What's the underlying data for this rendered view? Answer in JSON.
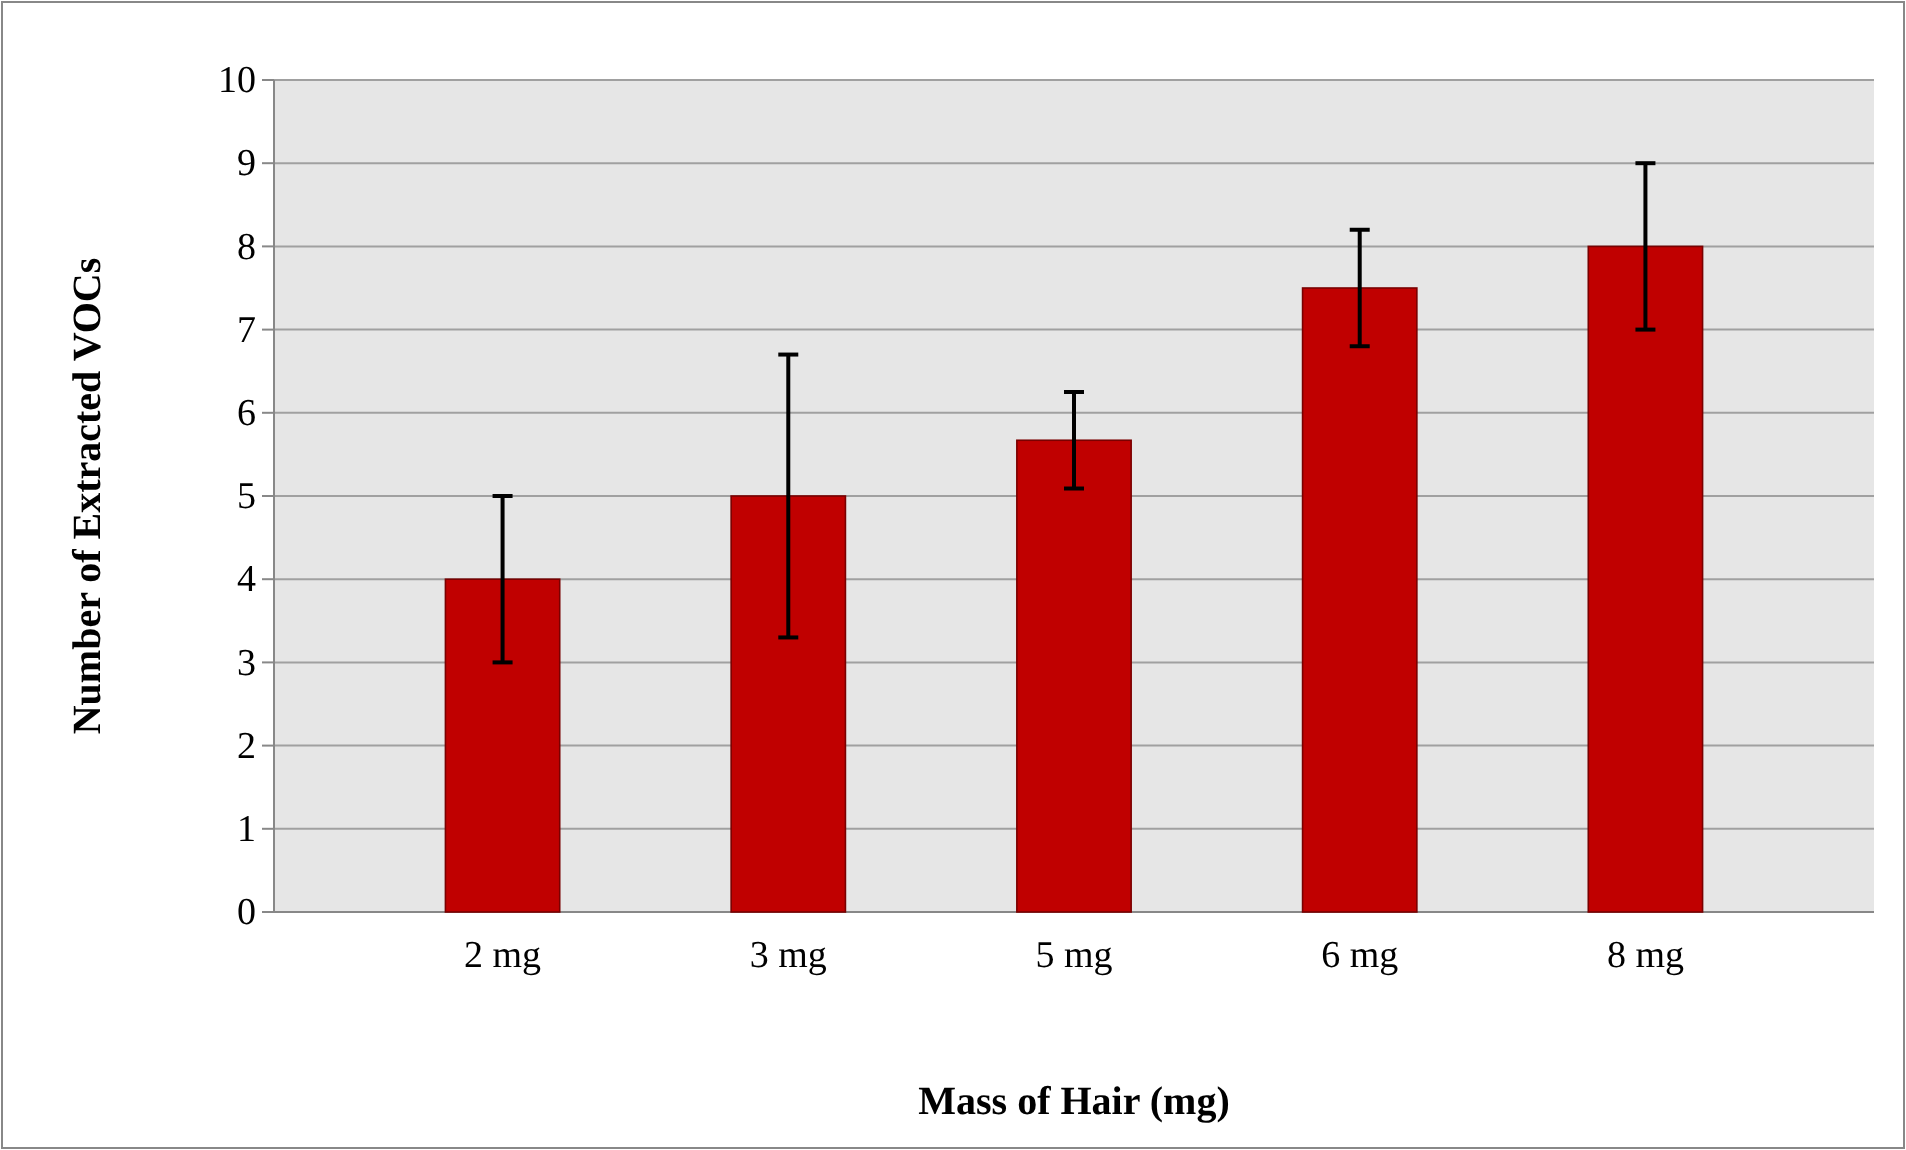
{
  "chart_data": {
    "type": "bar",
    "xlabel": "Mass of Hair (mg)",
    "ylabel": "Number of Extracted VOCs",
    "categories": [
      "2 mg",
      "3 mg",
      "5 mg",
      "6 mg",
      "8 mg"
    ],
    "values": [
      4,
      5,
      5.67,
      7.5,
      8
    ],
    "errors": [
      1,
      1.7,
      0.58,
      0.7,
      1
    ],
    "color": "#c00000",
    "ylim": [
      0,
      10
    ],
    "yticks": [
      0,
      1,
      2,
      3,
      4,
      5,
      6,
      7,
      8,
      9,
      10
    ],
    "grid": "y"
  }
}
